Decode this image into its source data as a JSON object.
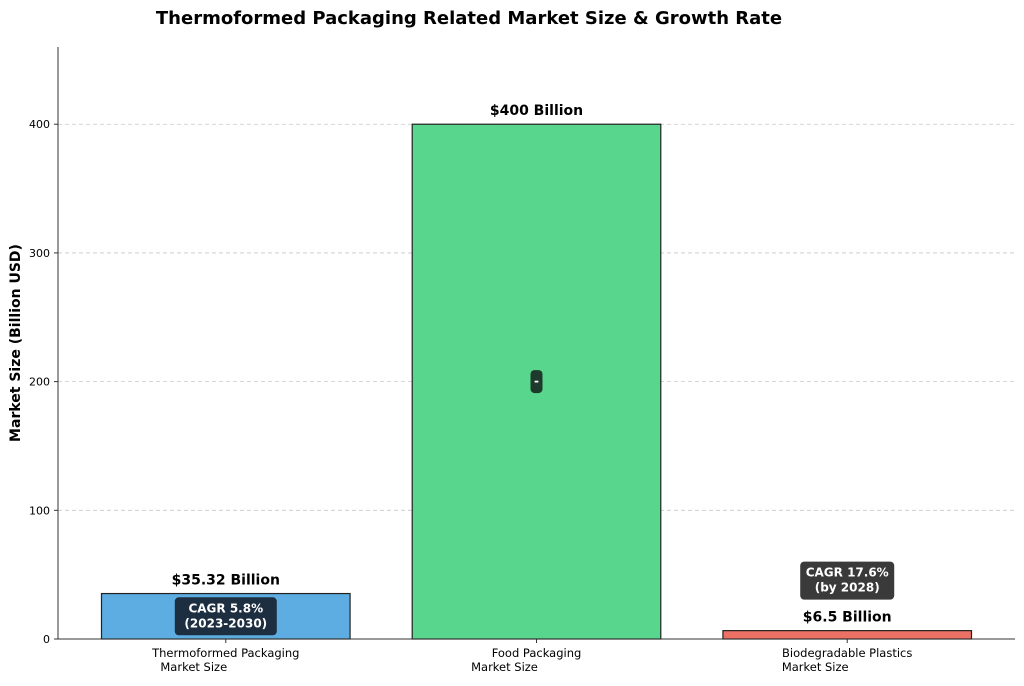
{
  "chart_data": {
    "type": "bar",
    "title": "Thermoformed Packaging Related Market Size & Growth Rate",
    "xlabel": "",
    "ylabel": "Market Size (Billion USD)",
    "ylim": [
      0,
      460
    ],
    "yticks": [
      0,
      100,
      200,
      300,
      400
    ],
    "grid": "y-dashed",
    "categories": [
      [
        "Thermoformed Packaging",
        "Market Size"
      ],
      [
        "Food Packaging",
        "Market Size"
      ],
      [
        "Biodegradable Plastics",
        "Market Size"
      ]
    ],
    "values": [
      35.32,
      400,
      6.5
    ],
    "value_labels": [
      "$35.32 Billion",
      "$400 Billion",
      "$6.5 Billion"
    ],
    "annotations": [
      [
        "CAGR 5.8%",
        "(2023-2030)"
      ],
      [
        "-"
      ],
      [
        "CAGR 17.6%",
        "(by 2028)"
      ]
    ],
    "colors": [
      "#5DADE2",
      "#58D68D",
      "#EC7063"
    ],
    "annotation_colors": [
      "#1C2E40",
      "#1E3A2C",
      "#3A3A3A"
    ]
  }
}
